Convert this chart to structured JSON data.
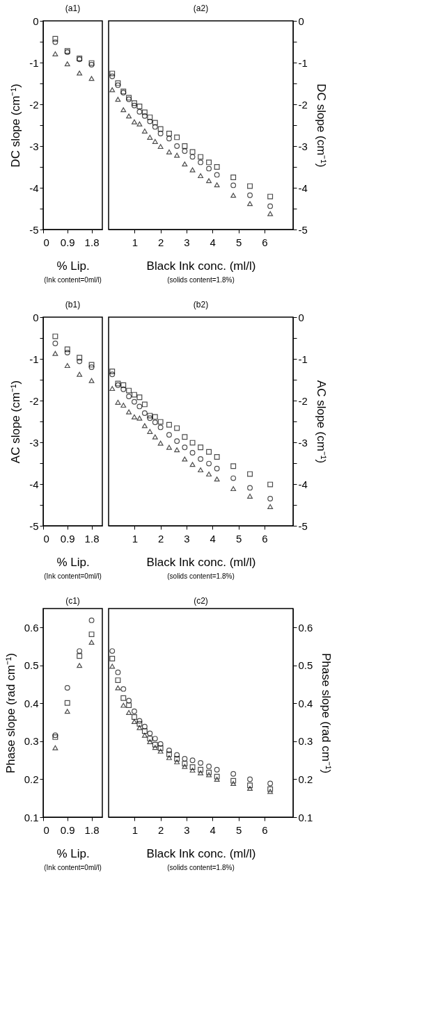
{
  "chart_data": [
    {
      "type": "scatter",
      "title": "(a1)",
      "xlabel": "% Lip.",
      "ylabel": "DC slope (cm⁻¹)",
      "annotations": [
        "(Ink content=0ml/l)"
      ],
      "x": [
        0.45,
        0.9,
        1.35,
        1.8
      ],
      "xlim": [
        0,
        2.2
      ],
      "xticks": [
        0,
        0.9,
        1.8
      ],
      "ylim": [
        -5,
        0
      ],
      "yticks": [
        0,
        {
          "value": -0.5,
          "label": null
        },
        -1,
        {
          "value": -1.5,
          "label": null
        },
        -2,
        {
          "value": -2.5,
          "label": null
        },
        -3,
        {
          "value": -3.5,
          "label": null
        },
        -4,
        {
          "value": -4.5,
          "label": null
        },
        -5
      ],
      "grid": false,
      "series": [
        {
          "color": "#000000",
          "marker": "square",
          "values": [
            -0.43,
            -0.72,
            -0.9,
            -1.01
          ]
        },
        {
          "color": "#000000",
          "marker": "circle",
          "values": [
            -0.51,
            -0.75,
            -0.92,
            -1.05
          ]
        },
        {
          "color": "#000000",
          "marker": "triangle",
          "values": [
            -0.79,
            -1.03,
            -1.25,
            -1.38
          ]
        }
      ]
    },
    {
      "type": "scatter",
      "title": "(a2)",
      "xlabel": "Black Ink conc. (ml/l)",
      "y2label": "DC slope (cm⁻¹)",
      "annotations": [
        "(solids content=1.8%)"
      ],
      "x": [
        0.14,
        0.36,
        0.57,
        0.78,
        0.99,
        1.19,
        1.39,
        1.59,
        1.79,
        2.0,
        2.33,
        2.63,
        2.93,
        3.23,
        3.54,
        3.86,
        4.17,
        4.8,
        5.44,
        6.22
      ],
      "xlim": [
        0,
        7.1
      ],
      "xticks": [
        1,
        2,
        3,
        4,
        5,
        6
      ],
      "y2lim": [
        -5,
        0
      ],
      "y2ticks": [
        0,
        {
          "value": -0.5,
          "label": null
        },
        -1,
        {
          "value": -1.5,
          "label": null
        },
        -2,
        {
          "value": -2.5,
          "label": null
        },
        -3,
        {
          "value": -3.5,
          "label": null
        },
        -4,
        {
          "value": -4.5,
          "label": null
        },
        -5
      ],
      "grid": false,
      "series": [
        {
          "color": "#000000",
          "marker": "square",
          "axis": "y2",
          "values": [
            -1.26,
            -1.49,
            -1.69,
            -1.84,
            -1.97,
            -2.05,
            -2.19,
            -2.31,
            -2.44,
            -2.59,
            -2.7,
            -2.79,
            -3.0,
            -3.14,
            -3.26,
            -3.39,
            -3.5,
            -3.75,
            -3.96,
            -4.21
          ]
        },
        {
          "color": "#000000",
          "marker": "circle",
          "axis": "y2",
          "values": [
            -1.33,
            -1.54,
            -1.72,
            -1.88,
            -2.03,
            -2.18,
            -2.28,
            -2.41,
            -2.54,
            -2.7,
            -2.82,
            -3.0,
            -3.12,
            -3.26,
            -3.39,
            -3.54,
            -3.69,
            -3.94,
            -4.18,
            -4.44
          ]
        },
        {
          "color": "#000000",
          "marker": "triangle",
          "axis": "y2",
          "values": [
            -1.65,
            -1.88,
            -2.13,
            -2.28,
            -2.42,
            -2.47,
            -2.64,
            -2.79,
            -2.89,
            -3.01,
            -3.14,
            -3.22,
            -3.43,
            -3.57,
            -3.71,
            -3.83,
            -3.93,
            -4.18,
            -4.38,
            -4.62
          ]
        }
      ]
    },
    {
      "type": "scatter",
      "title": "(b1)",
      "xlabel": "% Lip.",
      "ylabel": "AC slope (cm⁻¹)",
      "annotations": [
        "(Ink content=0ml/l)"
      ],
      "x": [
        0.45,
        0.9,
        1.35,
        1.8
      ],
      "xlim": [
        0,
        2.2
      ],
      "xticks": [
        0,
        0.9,
        1.8
      ],
      "ylim": [
        -5,
        0
      ],
      "yticks": [
        0,
        {
          "value": -0.5,
          "label": null
        },
        -1,
        {
          "value": -1.5,
          "label": null
        },
        -2,
        {
          "value": -2.5,
          "label": null
        },
        -3,
        {
          "value": -3.5,
          "label": null
        },
        -4,
        {
          "value": -4.5,
          "label": null
        },
        -5
      ],
      "grid": false,
      "series": [
        {
          "color": "#000000",
          "marker": "square",
          "values": [
            -0.46,
            -0.77,
            -0.97,
            -1.14
          ]
        },
        {
          "color": "#000000",
          "marker": "circle",
          "values": [
            -0.63,
            -0.85,
            -1.06,
            -1.2
          ]
        },
        {
          "color": "#000000",
          "marker": "triangle",
          "values": [
            -0.87,
            -1.16,
            -1.37,
            -1.52
          ]
        }
      ]
    },
    {
      "type": "scatter",
      "title": "(b2)",
      "xlabel": "Black Ink conc. (ml/l)",
      "y2label": "AC slope (cm⁻¹)",
      "annotations": [
        "(solids content=1.8%)"
      ],
      "x": [
        0.14,
        0.36,
        0.57,
        0.78,
        0.99,
        1.19,
        1.39,
        1.59,
        1.79,
        2.0,
        2.33,
        2.63,
        2.93,
        3.23,
        3.54,
        3.86,
        4.17,
        4.8,
        5.44,
        6.22
      ],
      "xlim": [
        0,
        7.1
      ],
      "xticks": [
        1,
        2,
        3,
        4,
        5,
        6
      ],
      "y2lim": [
        -5,
        0
      ],
      "y2ticks": [
        0,
        {
          "value": -0.5,
          "label": null
        },
        -1,
        {
          "value": -1.5,
          "label": null
        },
        -2,
        {
          "value": -2.5,
          "label": null
        },
        -3,
        {
          "value": -3.5,
          "label": null
        },
        -4,
        {
          "value": -4.5,
          "label": null
        },
        -5
      ],
      "grid": false,
      "series": [
        {
          "color": "#000000",
          "marker": "square",
          "axis": "y2",
          "values": [
            -1.3,
            -1.59,
            -1.63,
            -1.76,
            -1.86,
            -1.92,
            -2.09,
            -2.36,
            -2.39,
            -2.51,
            -2.58,
            -2.66,
            -2.87,
            -3.01,
            -3.12,
            -3.23,
            -3.35,
            -3.57,
            -3.76,
            -4.01
          ]
        },
        {
          "color": "#000000",
          "marker": "circle",
          "axis": "y2",
          "values": [
            -1.37,
            -1.63,
            -1.73,
            -1.9,
            -2.03,
            -2.14,
            -2.3,
            -2.42,
            -2.52,
            -2.64,
            -2.82,
            -2.97,
            -3.12,
            -3.25,
            -3.4,
            -3.51,
            -3.63,
            -3.86,
            -4.09,
            -4.35
          ]
        },
        {
          "color": "#000000",
          "marker": "triangle",
          "axis": "y2",
          "values": [
            -1.71,
            -2.04,
            -2.11,
            -2.27,
            -2.39,
            -2.42,
            -2.6,
            -2.74,
            -2.87,
            -3.02,
            -3.12,
            -3.18,
            -3.4,
            -3.53,
            -3.66,
            -3.76,
            -3.88,
            -4.11,
            -4.29,
            -4.54
          ]
        }
      ]
    },
    {
      "type": "scatter",
      "title": "(c1)",
      "xlabel": "% Lip.",
      "ylabel": "Phase slope (rad cm⁻¹)",
      "annotations": [
        "(Ink content=0ml/l)"
      ],
      "x": [
        0.45,
        0.9,
        1.35,
        1.8
      ],
      "xlim": [
        0,
        2.2
      ],
      "xticks": [
        0,
        0.9,
        1.8
      ],
      "ylim": [
        0.1,
        0.65
      ],
      "yticks": [
        0.1,
        0.2,
        0.3,
        0.4,
        0.5,
        0.6
      ],
      "grid": false,
      "series": [
        {
          "color": "#000000",
          "marker": "square",
          "values": [
            0.311,
            0.401,
            0.525,
            0.582
          ]
        },
        {
          "color": "#000000",
          "marker": "circle",
          "values": [
            0.316,
            0.441,
            0.538,
            0.619
          ]
        },
        {
          "color": "#000000",
          "marker": "triangle",
          "values": [
            0.283,
            0.379,
            0.5,
            0.561
          ]
        }
      ]
    },
    {
      "type": "scatter",
      "title": "(c2)",
      "xlabel": "Black Ink conc. (ml/l)",
      "y2label": "Phase slope (rad cm⁻¹)",
      "annotations": [
        "(solids content=1.8%)"
      ],
      "x": [
        0.14,
        0.36,
        0.57,
        0.78,
        0.99,
        1.19,
        1.39,
        1.59,
        1.79,
        2.0,
        2.33,
        2.63,
        2.93,
        3.23,
        3.54,
        3.86,
        4.17,
        4.8,
        5.44,
        6.22
      ],
      "xlim": [
        0,
        7.1
      ],
      "xticks": [
        1,
        2,
        3,
        4,
        5,
        6
      ],
      "y2lim": [
        0.1,
        0.65
      ],
      "y2ticks": [
        0.1,
        0.2,
        0.3,
        0.4,
        0.5,
        0.6
      ],
      "grid": false,
      "series": [
        {
          "color": "#000000",
          "marker": "square",
          "axis": "y2",
          "values": [
            0.518,
            0.461,
            0.414,
            0.395,
            0.364,
            0.346,
            0.327,
            0.307,
            0.291,
            0.282,
            0.266,
            0.254,
            0.241,
            0.232,
            0.225,
            0.218,
            0.207,
            0.196,
            0.184,
            0.174
          ]
        },
        {
          "color": "#000000",
          "marker": "circle",
          "axis": "y2",
          "values": [
            0.538,
            0.482,
            0.438,
            0.407,
            0.379,
            0.354,
            0.339,
            0.321,
            0.307,
            0.293,
            0.276,
            0.264,
            0.254,
            0.25,
            0.243,
            0.234,
            0.225,
            0.214,
            0.2,
            0.189
          ]
        },
        {
          "color": "#000000",
          "marker": "triangle",
          "axis": "y2",
          "values": [
            0.498,
            0.441,
            0.395,
            0.376,
            0.352,
            0.336,
            0.316,
            0.299,
            0.284,
            0.274,
            0.257,
            0.246,
            0.234,
            0.224,
            0.217,
            0.212,
            0.2,
            0.189,
            0.176,
            0.168
          ]
        }
      ]
    }
  ]
}
